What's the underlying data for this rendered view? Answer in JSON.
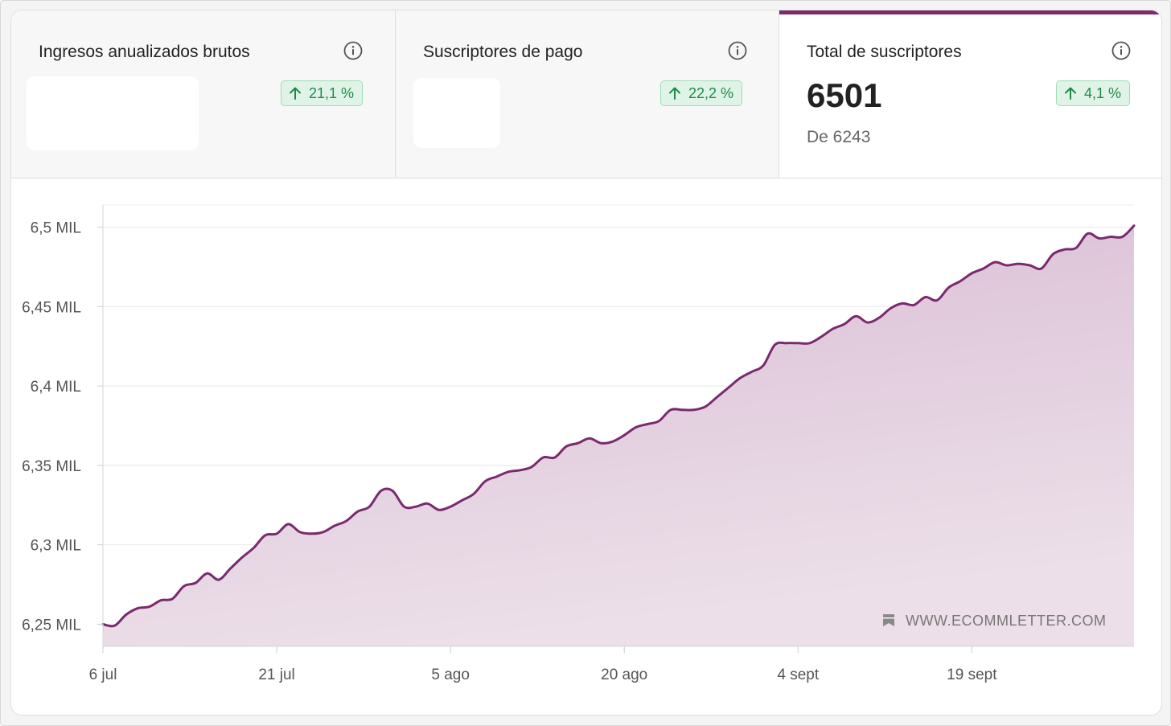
{
  "tabs": [
    {
      "title": "Ingresos anualizados brutos",
      "badge": "21,1 %",
      "active": false
    },
    {
      "title": "Suscriptores de pago",
      "badge": "22,2 %",
      "active": false
    },
    {
      "title": "Total de suscriptores",
      "badge": "4,1 %",
      "active": true,
      "value": "6501",
      "sub": "De 6243"
    }
  ],
  "colors": {
    "accent": "#7a2a6e",
    "area_top": "#d8bcd3",
    "area_bottom": "#ecdfe9",
    "badge_bg": "#dff4e6",
    "badge_text": "#1e8a4a"
  },
  "icons": {
    "info": "info-circle-icon",
    "trend": "arrow-up-icon",
    "watermark": "bookmark-icon"
  },
  "watermark": "WWW.ECOMMLETTER.COM",
  "chart_data": {
    "type": "area",
    "y_tick_labels": [
      "6,25 MIL",
      "6,3 MIL",
      "6,35 MIL",
      "6,4 MIL",
      "6,45 MIL",
      "6,5 MIL"
    ],
    "y_ticks": [
      6250,
      6300,
      6350,
      6400,
      6450,
      6500
    ],
    "x_tick_labels": [
      "6 jul",
      "21 jul",
      "5 ago",
      "20 ago",
      "4 sept",
      "19 sept"
    ],
    "x_ticks": [
      0,
      15,
      30,
      45,
      60,
      75
    ],
    "xlim": [
      0,
      89
    ],
    "ylim": [
      6236,
      6514
    ],
    "grid": true,
    "series": [
      {
        "x": [
          0,
          1,
          2,
          3,
          4,
          5,
          6,
          7,
          8,
          9,
          10,
          11,
          12,
          13,
          14,
          15,
          16,
          17,
          18,
          19,
          20,
          21,
          22,
          23,
          24,
          25,
          26,
          27,
          28,
          29,
          30,
          31,
          32,
          33,
          34,
          35,
          36,
          37,
          38,
          39,
          40,
          41,
          42,
          43,
          44,
          45,
          46,
          47,
          48,
          49,
          50,
          51,
          52,
          53,
          54,
          55,
          56,
          57,
          58,
          59,
          60,
          61,
          62,
          63,
          64,
          65,
          66,
          67,
          68,
          69,
          70,
          71,
          72,
          73,
          74,
          75,
          76,
          77,
          78,
          79,
          80,
          81,
          82,
          83,
          84,
          85,
          86,
          87,
          88,
          89
        ],
        "y": [
          6250,
          6249,
          6256,
          6260,
          6261,
          6265,
          6266,
          6274,
          6276,
          6282,
          6278,
          6285,
          6292,
          6298,
          6306,
          6307,
          6313,
          6308,
          6307,
          6308,
          6312,
          6315,
          6321,
          6324,
          6334,
          6334,
          6324,
          6324,
          6326,
          6322,
          6324,
          6328,
          6332,
          6340,
          6343,
          6346,
          6347,
          6349,
          6355,
          6355,
          6362,
          6364,
          6367,
          6364,
          6365,
          6369,
          6374,
          6376,
          6378,
          6385,
          6385,
          6385,
          6387,
          6393,
          6399,
          6405,
          6409,
          6413,
          6426,
          6427,
          6427,
          6427,
          6431,
          6436,
          6439,
          6444,
          6440,
          6443,
          6449,
          6452,
          6451,
          6456,
          6454,
          6462,
          6466,
          6471,
          6474,
          6478,
          6476,
          6477,
          6476,
          6474,
          6483,
          6486,
          6487,
          6496,
          6493,
          6494,
          6494,
          6501
        ]
      }
    ]
  }
}
